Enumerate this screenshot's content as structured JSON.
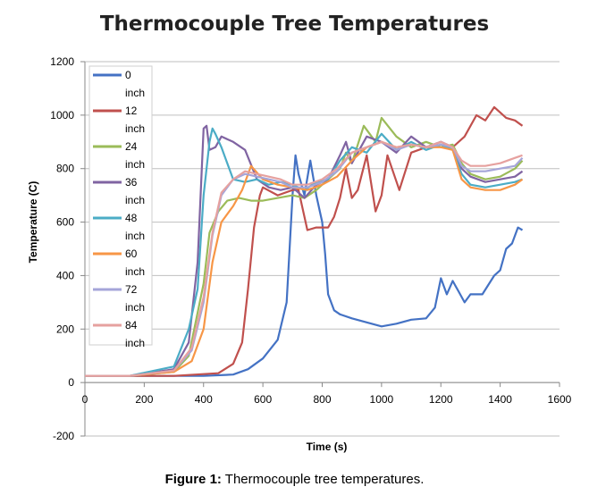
{
  "chart_data": {
    "type": "line",
    "title": "Thermocouple Tree Temperatures",
    "xlabel": "Time (s)",
    "ylabel": "Temperature (C)",
    "xlim": [
      0,
      1600
    ],
    "ylim": [
      -200,
      1200
    ],
    "x_ticks": [
      0,
      200,
      400,
      600,
      800,
      1000,
      1200,
      1400,
      1600
    ],
    "y_ticks": [
      -200,
      0,
      200,
      400,
      600,
      800,
      1000,
      1200
    ],
    "grid": "horizontal",
    "legend_position": "top-left",
    "series": [
      {
        "name": "0",
        "unit": "inch",
        "color": "#4472C4",
        "x": [
          0,
          150,
          300,
          400,
          500,
          550,
          600,
          650,
          680,
          700,
          710,
          720,
          740,
          760,
          780,
          800,
          810,
          820,
          840,
          860,
          900,
          1000,
          1050,
          1100,
          1150,
          1180,
          1200,
          1220,
          1240,
          1260,
          1280,
          1300,
          1340,
          1380,
          1400,
          1420,
          1440,
          1460,
          1475
        ],
        "y": [
          25,
          25,
          25,
          25,
          30,
          50,
          90,
          160,
          300,
          700,
          850,
          780,
          700,
          830,
          700,
          600,
          480,
          330,
          270,
          255,
          240,
          210,
          220,
          235,
          240,
          280,
          390,
          330,
          380,
          340,
          300,
          330,
          330,
          400,
          420,
          500,
          520,
          580,
          570
        ]
      },
      {
        "name": "12",
        "unit": "inch",
        "color": "#C0504D",
        "x": [
          0,
          150,
          300,
          450,
          500,
          530,
          550,
          570,
          590,
          600,
          650,
          700,
          720,
          750,
          780,
          800,
          820,
          840,
          860,
          880,
          900,
          920,
          950,
          980,
          1000,
          1020,
          1060,
          1100,
          1150,
          1200,
          1240,
          1280,
          1320,
          1350,
          1380,
          1420,
          1450,
          1475
        ],
        "y": [
          25,
          25,
          25,
          35,
          70,
          150,
          350,
          580,
          700,
          730,
          700,
          720,
          720,
          570,
          580,
          580,
          580,
          620,
          690,
          800,
          690,
          720,
          850,
          640,
          700,
          850,
          720,
          860,
          880,
          900,
          880,
          920,
          1000,
          980,
          1030,
          990,
          980,
          960
        ]
      },
      {
        "name": "24",
        "unit": "inch",
        "color": "#9BBB59",
        "x": [
          0,
          150,
          300,
          350,
          400,
          420,
          450,
          480,
          520,
          560,
          600,
          650,
          700,
          740,
          780,
          820,
          860,
          880,
          900,
          940,
          980,
          1000,
          1050,
          1100,
          1150,
          1200,
          1240,
          1270,
          1300,
          1350,
          1400,
          1450,
          1475
        ],
        "y": [
          25,
          25,
          40,
          100,
          370,
          560,
          640,
          680,
          690,
          680,
          680,
          690,
          700,
          690,
          720,
          760,
          800,
          860,
          820,
          960,
          900,
          990,
          920,
          880,
          900,
          880,
          890,
          820,
          780,
          760,
          770,
          800,
          830
        ]
      },
      {
        "name": "36",
        "unit": "inch",
        "color": "#8064A2",
        "x": [
          0,
          150,
          300,
          350,
          380,
          400,
          410,
          420,
          440,
          460,
          500,
          540,
          580,
          620,
          660,
          700,
          740,
          780,
          820,
          860,
          880,
          900,
          950,
          1000,
          1050,
          1100,
          1150,
          1200,
          1240,
          1270,
          1300,
          1350,
          1400,
          1450,
          1475
        ],
        "y": [
          25,
          25,
          50,
          150,
          450,
          950,
          960,
          870,
          880,
          920,
          900,
          870,
          760,
          730,
          720,
          730,
          690,
          740,
          760,
          850,
          900,
          820,
          920,
          900,
          860,
          920,
          880,
          900,
          880,
          800,
          770,
          750,
          760,
          770,
          790
        ]
      },
      {
        "name": "48",
        "unit": "inch",
        "color": "#4BACC6",
        "x": [
          0,
          150,
          300,
          350,
          380,
          400,
          420,
          430,
          440,
          460,
          500,
          540,
          580,
          620,
          660,
          700,
          740,
          780,
          820,
          860,
          900,
          950,
          1000,
          1050,
          1100,
          1150,
          1200,
          1240,
          1270,
          1300,
          1350,
          1400,
          1450,
          1475
        ],
        "y": [
          25,
          25,
          60,
          200,
          350,
          700,
          900,
          950,
          930,
          880,
          760,
          750,
          760,
          740,
          750,
          740,
          720,
          750,
          760,
          830,
          880,
          860,
          930,
          870,
          900,
          870,
          890,
          870,
          780,
          740,
          730,
          740,
          750,
          760
        ]
      },
      {
        "name": "60",
        "unit": "inch",
        "color": "#F79646",
        "x": [
          0,
          150,
          300,
          360,
          400,
          430,
          460,
          500,
          530,
          560,
          600,
          650,
          700,
          750,
          800,
          850,
          900,
          950,
          1000,
          1050,
          1100,
          1150,
          1200,
          1240,
          1270,
          1300,
          1350,
          1400,
          1450,
          1475
        ],
        "y": [
          25,
          25,
          40,
          80,
          200,
          450,
          600,
          660,
          720,
          810,
          760,
          740,
          730,
          720,
          740,
          770,
          830,
          880,
          900,
          880,
          890,
          880,
          880,
          870,
          760,
          730,
          720,
          720,
          740,
          760
        ]
      },
      {
        "name": "72",
        "unit": "inch",
        "color": "#A5A5D9",
        "x": [
          0,
          150,
          300,
          360,
          400,
          430,
          460,
          500,
          540,
          580,
          620,
          660,
          700,
          750,
          800,
          850,
          900,
          950,
          1000,
          1050,
          1100,
          1150,
          1200,
          1240,
          1270,
          1300,
          1350,
          1400,
          1450,
          1475
        ],
        "y": [
          25,
          25,
          45,
          120,
          300,
          550,
          700,
          760,
          780,
          770,
          760,
          750,
          730,
          730,
          750,
          790,
          860,
          880,
          900,
          870,
          890,
          880,
          890,
          880,
          810,
          790,
          790,
          800,
          810,
          840
        ]
      },
      {
        "name": "84",
        "unit": "inch",
        "color": "#E6A19F",
        "x": [
          0,
          150,
          300,
          360,
          400,
          430,
          460,
          500,
          540,
          580,
          620,
          660,
          700,
          750,
          800,
          850,
          900,
          950,
          1000,
          1050,
          1100,
          1150,
          1200,
          1240,
          1270,
          1300,
          1350,
          1400,
          1450,
          1475
        ],
        "y": [
          25,
          25,
          45,
          130,
          320,
          560,
          710,
          760,
          790,
          780,
          770,
          760,
          740,
          740,
          760,
          800,
          860,
          880,
          900,
          880,
          890,
          880,
          900,
          880,
          830,
          810,
          810,
          820,
          840,
          850
        ]
      }
    ]
  },
  "caption": {
    "label": "Figure 1:",
    "text": " Thermocouple tree temperatures."
  }
}
